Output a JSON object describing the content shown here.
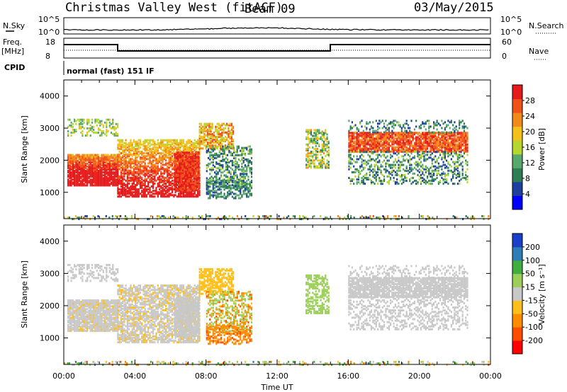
{
  "header": {
    "title": "Christmas Valley West (fitACF)",
    "beam": "Beam 09",
    "date": "03/May/2015"
  },
  "panels_top": {
    "nsky_label": "N.Sky",
    "nsky_ticks": [
      "10^5",
      "10^0"
    ],
    "nsearch_label": "N.Search",
    "nsearch_ticks": [
      "10^5",
      "10^0"
    ],
    "freq_label": "Freq.",
    "freq_unit": "[MHz]",
    "freq_ticks": [
      "18",
      "8"
    ],
    "nave_label": "Nave",
    "nave_ticks": [
      "60",
      "0"
    ],
    "cpid_label": "CPID",
    "cpid_text": "normal (fast) 151 IF"
  },
  "colors": {
    "power_scale": [
      "#0000ff",
      "#1f3f9f",
      "#2e7d55",
      "#59a86b",
      "#b5d62e",
      "#f2c21a",
      "#f08a1a",
      "#f0501a",
      "#e51a1a"
    ],
    "velocity_scale": [
      "#ff0000",
      "#ff4d00",
      "#ff8c00",
      "#ffbf1a",
      "#c8c8c8",
      "#9ccf5a",
      "#3fae3f",
      "#2e7db5",
      "#1a3fc8"
    ]
  },
  "chart_data": [
    {
      "type": "heatmap",
      "quantity": "Power",
      "xlabel": "Time UT",
      "ylabel": "Slant Range [km]",
      "x_ticks": [
        "00:00",
        "04:00",
        "08:00",
        "12:00",
        "16:00",
        "20:00",
        "00:00"
      ],
      "x_range_hours": [
        0,
        24
      ],
      "y_ticks": [
        1000,
        2000,
        3000,
        4000
      ],
      "ylim": [
        180,
        4500
      ],
      "colorbar": {
        "label": "Power [dB]",
        "ticks": [
          4,
          8,
          12,
          16,
          20,
          24,
          28
        ],
        "range": [
          0,
          30
        ]
      }
    },
    {
      "type": "heatmap",
      "quantity": "Velocity",
      "xlabel": "Time UT",
      "ylabel": "Slant Range [km]",
      "x_ticks": [
        "00:00",
        "04:00",
        "08:00",
        "12:00",
        "16:00",
        "20:00",
        "00:00"
      ],
      "x_range_hours": [
        0,
        24
      ],
      "y_ticks": [
        1000,
        2000,
        3000,
        4000
      ],
      "ylim": [
        180,
        4500
      ],
      "colorbar": {
        "label": "Velocity [m s⁻¹]",
        "ticks": [
          -200,
          -100,
          -50,
          -15,
          15,
          50,
          100,
          200
        ],
        "range": [
          -250,
          250
        ]
      }
    }
  ]
}
